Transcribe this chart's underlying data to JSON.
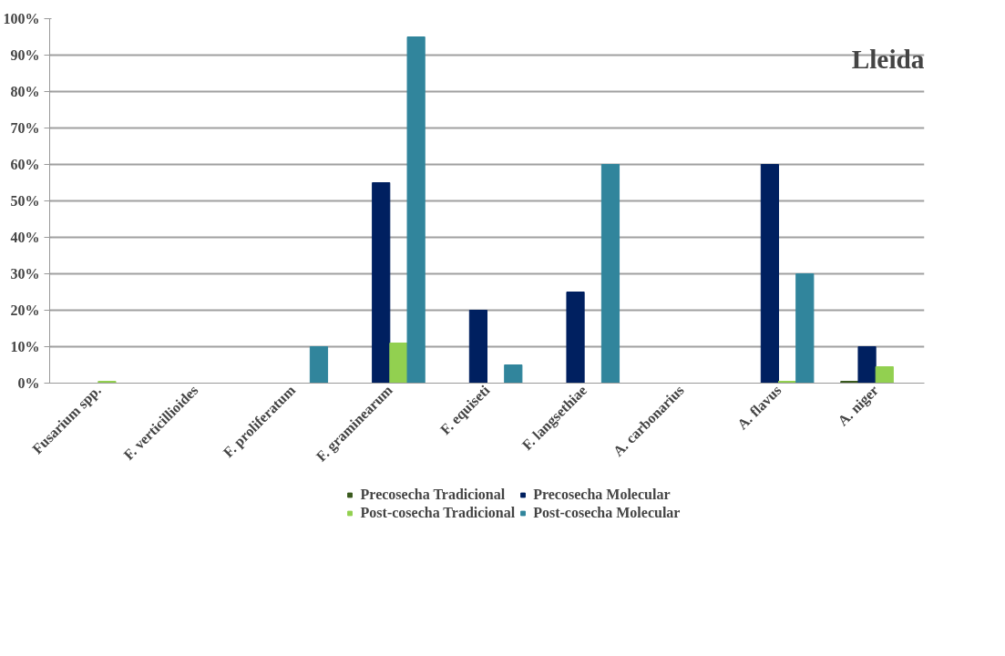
{
  "chart_data": {
    "type": "bar",
    "categories": [
      "Fusarium spp.",
      "F. verticillioides",
      "F. proliferatum",
      "F. graminearum",
      "F. equiseti",
      "F. langsethiae",
      "A. carbonarius",
      "A. flavus",
      "A. niger"
    ],
    "series": [
      {
        "name": "Precosecha Tradicional",
        "color": "#3a5a1e",
        "values": [
          0,
          0,
          0,
          0,
          0,
          0,
          0,
          0,
          0.5
        ]
      },
      {
        "name": "Precosecha Molecular",
        "color": "#002060",
        "values": [
          0,
          0,
          0,
          55,
          20,
          25,
          0,
          60,
          10
        ]
      },
      {
        "name": "Post-cosecha Tradicional",
        "color": "#92d050",
        "values": [
          0.5,
          0,
          0,
          11,
          0,
          0,
          0,
          0.5,
          4.5
        ]
      },
      {
        "name": "Post-cosecha Molecular",
        "color": "#31859c",
        "values": [
          0,
          0,
          10,
          95,
          5,
          60,
          0,
          30,
          0
        ]
      }
    ],
    "ylim": [
      0,
      100
    ],
    "yticks": [
      {
        "value": 0,
        "label": "0%"
      },
      {
        "value": 10,
        "label": "10%"
      },
      {
        "value": 20,
        "label": "20%"
      },
      {
        "value": 30,
        "label": "30%"
      },
      {
        "value": 40,
        "label": "40%"
      },
      {
        "value": 50,
        "label": "50%"
      },
      {
        "value": 60,
        "label": "60%"
      },
      {
        "value": 70,
        "label": "70%"
      },
      {
        "value": 80,
        "label": "80%"
      },
      {
        "value": 90,
        "label": "90%"
      },
      {
        "value": 100,
        "label": "100%"
      }
    ],
    "annotations": [
      "Lleida"
    ],
    "grid": "y",
    "legend": "bottom"
  }
}
